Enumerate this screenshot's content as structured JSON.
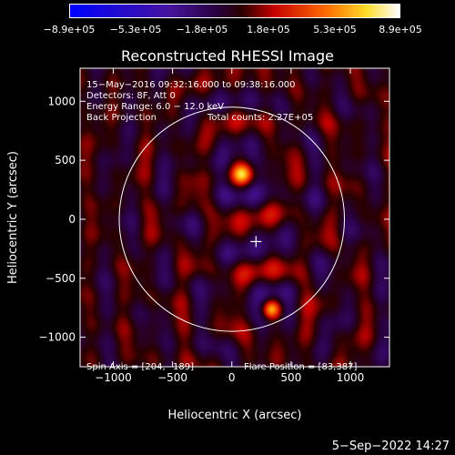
{
  "chart_data": {
    "type": "heatmap",
    "title": "Reconstructed RHESSI Image",
    "xlabel": "Heliocentric X (arcsec)",
    "ylabel": "Heliocentric Y (arcsec)",
    "xlim": [
      -1280,
      1330
    ],
    "ylim": [
      -1250,
      1280
    ],
    "xticks": [
      -1000,
      -500,
      0,
      500,
      1000
    ],
    "yticks": [
      -1000,
      -500,
      0,
      500,
      1000
    ],
    "xtick_labels": [
      "−1000",
      "−500",
      "0",
      "500",
      "1000"
    ],
    "ytick_labels": [
      "−1000",
      "−500",
      "0",
      "500",
      "1000"
    ],
    "colorbar": {
      "min": -890000,
      "max": 890000,
      "tick_labels": [
        "−8.9e+05",
        "−5.3e+05",
        "−1.8e+05",
        "1.8e+05",
        "5.3e+05",
        "8.9e+05"
      ]
    },
    "annotations": {
      "time_range": "15−May−2016 09:32:16.000 to 09:38:16.000",
      "detectors": "Detectors: 8F, Att 0",
      "energy_range": "Energy Range: 6.0 − 12.0 keV",
      "method": "Back Projection",
      "total_counts": "Total counts: 2.27E+05",
      "spin_axis": "Spin Axis = [204,−189]",
      "flare_position": "Flare Position = [83,387]"
    },
    "sources": [
      {
        "x": 83,
        "y": 387
      },
      {
        "x": 330,
        "y": -760
      }
    ],
    "spin_axis": {
      "x": 204,
      "y": -189
    },
    "solar_radius": 950
  },
  "footer": {
    "timestamp": "5−Sep−2022 14:27"
  },
  "colors": {
    "background": "#000000",
    "axis": "#ffffff",
    "limb": "#ffffff"
  }
}
